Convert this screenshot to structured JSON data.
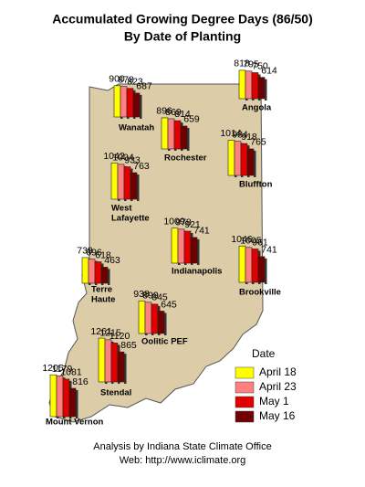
{
  "title": [
    "Accumulated Growing Degree Days (86/50)",
    "By Date of Planting"
  ],
  "legend": {
    "title": "Date",
    "series": [
      {
        "name": "April 18",
        "color": "#ffff00"
      },
      {
        "name": "April 23",
        "color": "#ff8080"
      },
      {
        "name": "May 1",
        "color": "#e00000"
      },
      {
        "name": "May 16",
        "color": "#700000"
      }
    ]
  },
  "stations": [
    {
      "name": [
        "Wanatah"
      ],
      "values": [
        900,
        878,
        823,
        687
      ]
    },
    {
      "name": [
        "Angola"
      ],
      "values": [
        818,
        795,
        750,
        614
      ]
    },
    {
      "name": [
        "Rochester"
      ],
      "values": [
        896,
        869,
        814,
        659
      ]
    },
    {
      "name": [
        "Bluffton"
      ],
      "values": [
        1014,
        984,
        918,
        765
      ]
    },
    {
      "name": [
        "West",
        "Lafayette"
      ],
      "values": [
        1042,
        1004,
        933,
        763
      ]
    },
    {
      "name": [
        "Indianapolis"
      ],
      "values": [
        1009,
        978,
        921,
        741
      ]
    },
    {
      "name": [
        "Brookville"
      ],
      "values": [
        1046,
        1005,
        961,
        741
      ]
    },
    {
      "name": [
        "Terre",
        "Haute"
      ],
      "values": [
        739,
        696,
        618,
        463
      ]
    },
    {
      "name": [
        "Oolitic PEF"
      ],
      "values": [
        938,
        899,
        845,
        645
      ]
    },
    {
      "name": [
        "Stendal"
      ],
      "values": [
        1261,
        1215,
        1120,
        865
      ]
    },
    {
      "name": [
        "Mount Vernon"
      ],
      "values": [
        1205,
        1179,
        1081,
        816
      ]
    }
  ],
  "footer": [
    "Analysis by Indiana State Climate Office",
    "Web: http://www.iclimate.org"
  ]
}
